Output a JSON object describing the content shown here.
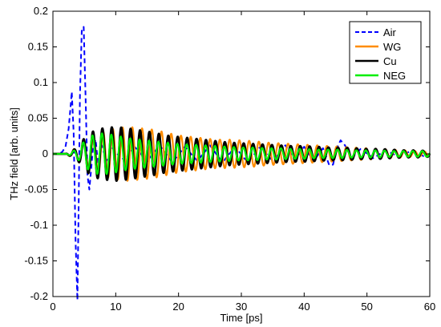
{
  "chart_data": {
    "type": "line",
    "xlabel": "Time [ps]",
    "ylabel": "THz field [arb. units]",
    "xlim": [
      0,
      60
    ],
    "ylim": [
      -0.2,
      0.2
    ],
    "x_ticks": [
      0,
      10,
      20,
      30,
      40,
      50,
      60
    ],
    "y_ticks": [
      -0.2,
      -0.15,
      -0.1,
      -0.05,
      0,
      0.05,
      0.1,
      0.15,
      0.2
    ],
    "x_tick_labels": [
      "0",
      "10",
      "20",
      "30",
      "40",
      "50",
      "60"
    ],
    "y_tick_labels": [
      "-0.2",
      "-0.15",
      "-0.1",
      "-0.05",
      "0",
      "0.05",
      "0.1",
      "0.15",
      "0.2"
    ],
    "grid": false,
    "legend_position": "top-right",
    "series": [
      {
        "name": "Air",
        "color": "#0000ff",
        "dash": "dashed",
        "x": [
          0,
          1,
          1.5,
          2,
          2.5,
          2.8,
          3.0,
          3.3,
          3.6,
          3.9,
          4.1,
          4.3,
          4.6,
          4.9,
          5.2,
          5.5,
          5.8,
          6.1,
          6.4,
          6.8,
          7.2,
          7.8,
          8.5,
          9.5,
          11,
          13,
          15,
          17,
          19,
          21,
          23,
          25,
          27,
          29,
          31,
          33,
          35,
          37,
          38.5,
          40,
          41.5,
          43,
          44.0,
          44.6,
          45.2,
          45.8,
          46.5,
          47.5,
          49,
          51,
          53,
          55,
          57,
          59,
          60
        ],
        "y": [
          0.0,
          0.0,
          0.003,
          0.01,
          0.035,
          0.065,
          0.087,
          0.03,
          -0.12,
          -0.205,
          -0.07,
          0.08,
          0.175,
          0.178,
          0.08,
          -0.03,
          -0.05,
          -0.02,
          0.01,
          0.02,
          -0.015,
          0.012,
          -0.01,
          0.008,
          -0.008,
          0.01,
          -0.01,
          0.012,
          -0.012,
          0.01,
          -0.01,
          0.012,
          -0.012,
          0.01,
          -0.012,
          0.01,
          -0.01,
          0.012,
          -0.008,
          0.01,
          -0.01,
          0.008,
          -0.016,
          -0.015,
          0.008,
          0.019,
          0.012,
          -0.006,
          0.007,
          -0.006,
          0.005,
          -0.004,
          0.004,
          -0.003,
          0.0
        ]
      },
      {
        "name": "WG",
        "color": "#ff8c00",
        "dash": "solid",
        "x": [
          0,
          2,
          3,
          4,
          5,
          6,
          8,
          10,
          12,
          14,
          16,
          18,
          20,
          22,
          24,
          26,
          28,
          30,
          32,
          34,
          36,
          38,
          40,
          42,
          44,
          46,
          48,
          50,
          52,
          54,
          56,
          58,
          60
        ],
        "y": [
          0,
          0,
          0.005,
          0.01,
          0.015,
          0.02,
          0.032,
          0.036,
          0.038,
          0.036,
          0.034,
          0.03,
          0.026,
          0.024,
          0.022,
          0.02,
          0.02,
          0.019,
          0.018,
          0.016,
          0.015,
          0.014,
          0.013,
          0.012,
          0.011,
          0.01,
          0.009,
          0.008,
          0.007,
          0.006,
          0.005,
          0.004,
          0.003
        ],
        "period": 1.55,
        "phase": 0.6
      },
      {
        "name": "Cu",
        "color": "#000000",
        "dash": "solid",
        "x": [
          0,
          2,
          3,
          4,
          5,
          6,
          7,
          8,
          10,
          12,
          14,
          16,
          18,
          20,
          22,
          24,
          26,
          28,
          30,
          32,
          34,
          36,
          38,
          40,
          42,
          44,
          46,
          48,
          50,
          52,
          54,
          56,
          58,
          60
        ],
        "y": [
          0,
          0,
          0.004,
          0.01,
          0.022,
          0.03,
          0.034,
          0.036,
          0.038,
          0.036,
          0.033,
          0.03,
          0.026,
          0.024,
          0.022,
          0.02,
          0.018,
          0.016,
          0.015,
          0.014,
          0.013,
          0.012,
          0.011,
          0.011,
          0.01,
          0.009,
          0.009,
          0.008,
          0.007,
          0.007,
          0.006,
          0.005,
          0.005,
          0.004
        ],
        "period": 1.5,
        "phase": 0.0
      },
      {
        "name": "NEG",
        "color": "#00ee00",
        "dash": "solid",
        "x": [
          0,
          2,
          3,
          4,
          5,
          6,
          7,
          8,
          10,
          12,
          14,
          16,
          18,
          20,
          22,
          24,
          26,
          28,
          30,
          32,
          34,
          36,
          38,
          40,
          42,
          44,
          46,
          48,
          50,
          52,
          54,
          56,
          58,
          60
        ],
        "y": [
          0,
          0,
          0.003,
          0.008,
          0.018,
          0.025,
          0.028,
          0.029,
          0.026,
          0.022,
          0.02,
          0.018,
          0.016,
          0.014,
          0.013,
          0.012,
          0.011,
          0.01,
          0.009,
          0.009,
          0.008,
          0.008,
          0.007,
          0.007,
          0.006,
          0.006,
          0.006,
          0.005,
          0.005,
          0.005,
          0.004,
          0.004,
          0.004,
          0.004
        ],
        "period": 1.5,
        "phase": 0.3
      }
    ]
  }
}
